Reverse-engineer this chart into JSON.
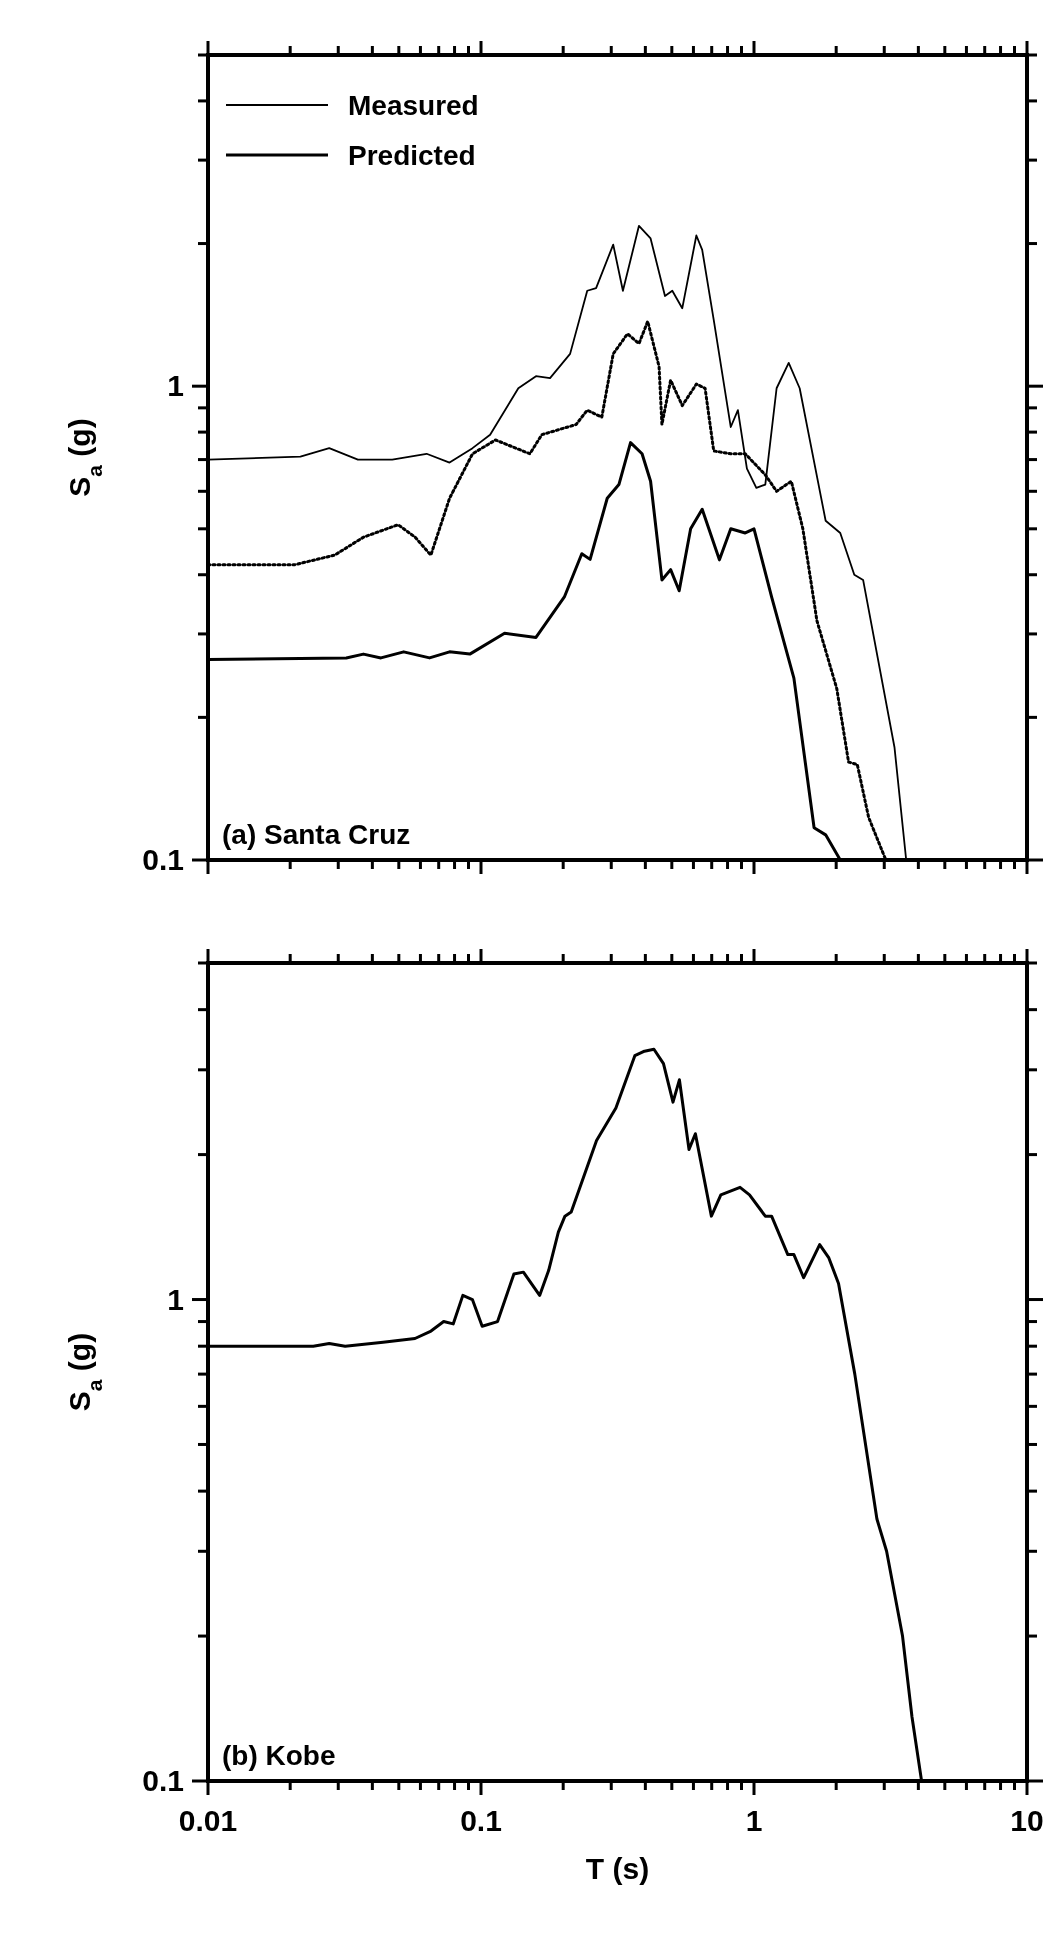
{
  "chart_data": [
    {
      "type": "line",
      "annotations": [
        "(a) Santa Cruz"
      ],
      "ylabel": "S$_{a}$ (g)",
      "log": "xy",
      "legend": "top left",
      "tick_labels": "y",
      "xlim": [
        0.01,
        10
      ],
      "xticks": [
        {
          "value": 0.01,
          "label": null
        },
        {
          "value": 0.02,
          "label": null
        },
        {
          "value": 0.03,
          "label": null
        },
        {
          "value": 0.04,
          "label": null
        },
        {
          "value": 0.05,
          "label": null
        },
        {
          "value": 0.06,
          "label": null
        },
        {
          "value": 0.07,
          "label": null
        },
        {
          "value": 0.08,
          "label": null
        },
        {
          "value": 0.09,
          "label": null
        },
        {
          "value": 0.1,
          "label": null
        },
        {
          "value": 0.2,
          "label": null
        },
        {
          "value": 0.3,
          "label": null
        },
        {
          "value": 0.4,
          "label": null
        },
        {
          "value": 0.5,
          "label": null
        },
        {
          "value": 0.6,
          "label": null
        },
        {
          "value": 0.7,
          "label": null
        },
        {
          "value": 0.8,
          "label": null
        },
        {
          "value": 0.9,
          "label": null
        },
        {
          "value": 1,
          "label": null
        },
        {
          "value": 2,
          "label": null
        },
        {
          "value": 3,
          "label": null
        },
        {
          "value": 4,
          "label": null
        },
        {
          "value": 5,
          "label": null
        },
        {
          "value": 6,
          "label": null
        },
        {
          "value": 7,
          "label": null
        },
        {
          "value": 8,
          "label": null
        },
        {
          "value": 9,
          "label": null
        },
        {
          "value": 10,
          "label": null
        }
      ],
      "ylim": [
        0.1,
        5
      ],
      "yticks": [
        {
          "value": 0.1,
          "label": "0.1"
        },
        {
          "value": 0.2,
          "label": null
        },
        {
          "value": 0.3,
          "label": null
        },
        {
          "value": 0.4,
          "label": null
        },
        {
          "value": 0.5,
          "label": null
        },
        {
          "value": 0.6,
          "label": null
        },
        {
          "value": 0.7,
          "label": null
        },
        {
          "value": 0.8,
          "label": null
        },
        {
          "value": 0.9,
          "label": null
        },
        {
          "value": 1,
          "label": "1"
        },
        {
          "value": 2,
          "label": null
        },
        {
          "value": 3,
          "label": null
        },
        {
          "value": 4,
          "label": null
        },
        {
          "value": 5,
          "label": null
        }
      ],
      "series": [
        {
          "name": "Measured",
          "color": "#000000",
          "line_style": "solid",
          "x": [
            0.01,
            0.0218,
            0.0278,
            0.0354,
            0.0473,
            0.0632,
            0.0767,
            0.0931,
            0.108,
            0.137,
            0.159,
            0.179,
            0.212,
            0.245,
            0.264,
            0.305,
            0.331,
            0.379,
            0.418,
            0.472,
            0.502,
            0.546,
            0.615,
            0.646,
            0.712,
            0.822,
            0.873,
            0.942,
            1.02,
            1.1,
            1.21,
            1.34,
            1.47,
            1.83,
            2.07,
            2.33,
            2.51,
            3.27,
            3.61
          ],
          "values": [
            0.7,
            0.71,
            0.74,
            0.7,
            0.7,
            0.72,
            0.69,
            0.74,
            0.79,
            0.99,
            1.05,
            1.04,
            1.17,
            1.59,
            1.61,
            1.99,
            1.59,
            2.18,
            2.05,
            1.55,
            1.59,
            1.46,
            2.08,
            1.94,
            1.38,
            0.82,
            0.89,
            0.67,
            0.61,
            0.62,
            0.99,
            1.12,
            0.99,
            0.52,
            0.49,
            0.4,
            0.39,
            0.173,
            0.1
          ]
        },
        {
          "color": "#000000",
          "line_style": "dotted",
          "x": [
            0.01,
            0.0208,
            0.0291,
            0.0371,
            0.0497,
            0.0574,
            0.0655,
            0.0767,
            0.0931,
            0.113,
            0.151,
            0.167,
            0.223,
            0.245,
            0.277,
            0.305,
            0.344,
            0.379,
            0.408,
            0.449,
            0.46,
            0.495,
            0.546,
            0.615,
            0.662,
            0.712,
            0.822,
            0.929,
            1.1,
            1.21,
            1.37,
            1.51,
            1.7,
            2.01,
            2.22,
            2.39,
            2.63,
            3.04
          ],
          "values": [
            0.42,
            0.42,
            0.44,
            0.48,
            0.51,
            0.48,
            0.44,
            0.58,
            0.72,
            0.77,
            0.72,
            0.79,
            0.83,
            0.89,
            0.86,
            1.17,
            1.29,
            1.23,
            1.37,
            1.1,
            0.83,
            1.03,
            0.91,
            1.01,
            0.99,
            0.73,
            0.72,
            0.72,
            0.65,
            0.6,
            0.63,
            0.5,
            0.32,
            0.23,
            0.161,
            0.159,
            0.123,
            0.1
          ]
        },
        {
          "name": "Predicted",
          "color": "#000000",
          "line_style": "solid",
          "x": [
            0.01,
            0.0321,
            0.0371,
            0.043,
            0.0521,
            0.0648,
            0.0767,
            0.091,
            0.122,
            0.159,
            0.202,
            0.234,
            0.251,
            0.29,
            0.32,
            0.353,
            0.389,
            0.418,
            0.46,
            0.495,
            0.532,
            0.586,
            0.646,
            0.747,
            0.822,
            0.929,
            1.0,
            1.16,
            1.4,
            1.66,
            1.83,
            2.07
          ],
          "values": [
            0.265,
            0.267,
            0.272,
            0.267,
            0.275,
            0.267,
            0.275,
            0.272,
            0.301,
            0.295,
            0.359,
            0.443,
            0.431,
            0.58,
            0.62,
            0.76,
            0.72,
            0.63,
            0.39,
            0.41,
            0.37,
            0.5,
            0.55,
            0.43,
            0.5,
            0.49,
            0.5,
            0.359,
            0.242,
            0.117,
            0.113,
            0.1
          ]
        }
      ]
    },
    {
      "type": "line",
      "annotations": [
        "(b) Kobe"
      ],
      "ylabel": "S$_{a}$ (g)",
      "xlabel": "T (s)",
      "log": "xy",
      "xlim": [
        0.01,
        10
      ],
      "xticks": [
        0.01,
        {
          "value": 0.02,
          "label": null
        },
        {
          "value": 0.03,
          "label": null
        },
        {
          "value": 0.04,
          "label": null
        },
        {
          "value": 0.05,
          "label": null
        },
        {
          "value": 0.06,
          "label": null
        },
        {
          "value": 0.07,
          "label": null
        },
        {
          "value": 0.08,
          "label": null
        },
        {
          "value": 0.09,
          "label": null
        },
        0.1,
        {
          "value": 0.2,
          "label": null
        },
        {
          "value": 0.3,
          "label": null
        },
        {
          "value": 0.4,
          "label": null
        },
        {
          "value": 0.5,
          "label": null
        },
        {
          "value": 0.6,
          "label": null
        },
        {
          "value": 0.7,
          "label": null
        },
        {
          "value": 0.8,
          "label": null
        },
        {
          "value": 0.9,
          "label": null
        },
        1,
        {
          "value": 2,
          "label": null
        },
        {
          "value": 3,
          "label": null
        },
        {
          "value": 4,
          "label": null
        },
        {
          "value": 5,
          "label": null
        },
        {
          "value": 6,
          "label": null
        },
        {
          "value": 7,
          "label": null
        },
        {
          "value": 8,
          "label": null
        },
        {
          "value": 9,
          "label": null
        },
        10
      ],
      "ylim": [
        0.1,
        5
      ],
      "yticks": [
        {
          "value": 0.1,
          "label": "0.1"
        },
        {
          "value": 0.2,
          "label": null
        },
        {
          "value": 0.3,
          "label": null
        },
        {
          "value": 0.4,
          "label": null
        },
        {
          "value": 0.5,
          "label": null
        },
        {
          "value": 0.6,
          "label": null
        },
        {
          "value": 0.7,
          "label": null
        },
        {
          "value": 0.8,
          "label": null
        },
        {
          "value": 0.9,
          "label": null
        },
        {
          "value": 1,
          "label": "1"
        },
        {
          "value": 2,
          "label": null
        },
        {
          "value": 3,
          "label": null
        },
        {
          "value": 4,
          "label": null
        },
        {
          "value": 5,
          "label": null
        }
      ],
      "series": [
        {
          "color": "#000000",
          "line_style": "solid",
          "x": [
            0.01,
            0.0243,
            0.0278,
            0.0318,
            0.0438,
            0.0573,
            0.0656,
            0.073,
            0.0791,
            0.0858,
            0.093,
            0.101,
            0.115,
            0.132,
            0.143,
            0.164,
            0.177,
            0.192,
            0.203,
            0.214,
            0.265,
            0.312,
            0.366,
            0.397,
            0.43,
            0.466,
            0.505,
            0.533,
            0.578,
            0.61,
            0.698,
            0.756,
            0.889,
            0.963,
            1.1,
            1.16,
            1.33,
            1.4,
            1.52,
            1.74,
            1.88,
            2.04,
            2.34,
            2.82,
            3.06,
            3.5,
            3.79,
            4.11
          ],
          "values": [
            0.8,
            0.8,
            0.81,
            0.8,
            0.815,
            0.83,
            0.86,
            0.9,
            0.89,
            1.02,
            1.0,
            0.88,
            0.9,
            1.13,
            1.14,
            1.02,
            1.15,
            1.38,
            1.49,
            1.52,
            2.14,
            2.5,
            3.21,
            3.28,
            3.31,
            3.09,
            2.57,
            2.86,
            2.05,
            2.21,
            1.49,
            1.65,
            1.71,
            1.65,
            1.49,
            1.49,
            1.24,
            1.24,
            1.11,
            1.3,
            1.22,
            1.08,
            0.7,
            0.35,
            0.3,
            0.2,
            0.136,
            0.1
          ]
        }
      ]
    }
  ]
}
